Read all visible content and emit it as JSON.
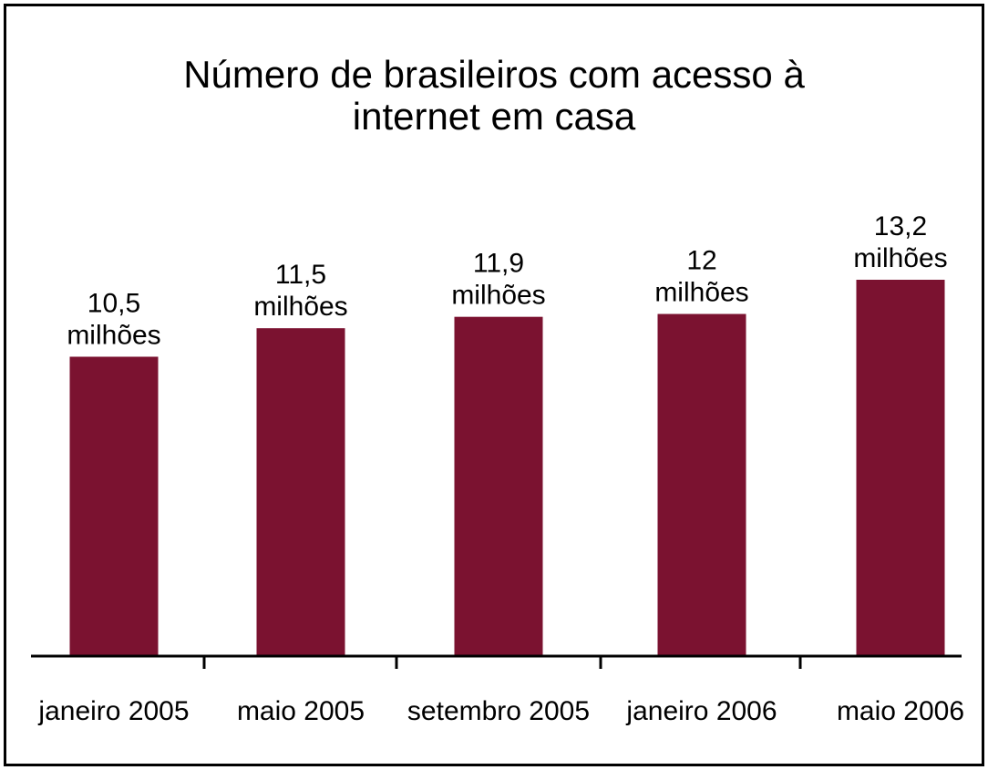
{
  "chart_data": {
    "type": "bar",
    "title_lines": [
      "Número de brasileiros com acesso à",
      "internet em casa"
    ],
    "categories": [
      "janeiro 2005",
      "maio 2005",
      "setembro 2005",
      "janeiro 2006",
      "maio 2006"
    ],
    "values": [
      10.5,
      11.5,
      11.9,
      12,
      13.2
    ],
    "data_labels": [
      [
        "10,5",
        "milhões"
      ],
      [
        "11,5",
        "milhões"
      ],
      [
        "11,9",
        "milhões"
      ],
      [
        "12",
        "milhões"
      ],
      [
        "13,2",
        "milhões"
      ]
    ],
    "xlabel": "",
    "ylabel": "",
    "ylim": [
      0,
      13.2
    ],
    "grid": false,
    "bar_color": "#7b1230",
    "axis_color": "#000000"
  }
}
